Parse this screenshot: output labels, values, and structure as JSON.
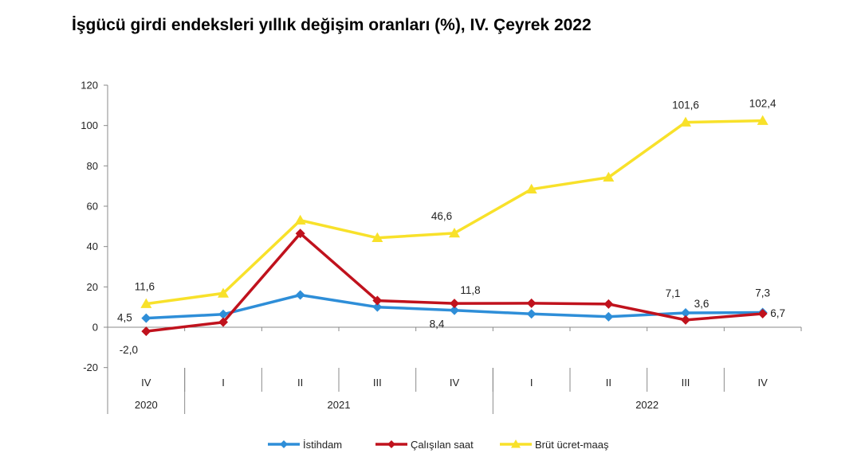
{
  "title": "İşgücü girdi endeksleri yıllık değişim oranları (%), IV. Çeyrek 2022",
  "chart_data": {
    "type": "line",
    "title": "İşgücü girdi endeksleri yıllık değişim oranları (%), IV. Çeyrek 2022",
    "categories": [
      "IV",
      "I",
      "II",
      "III",
      "IV",
      "I",
      "II",
      "III",
      "IV"
    ],
    "year_groups": [
      {
        "label": "2020",
        "count": 1
      },
      {
        "label": "2021",
        "count": 4
      },
      {
        "label": "2022",
        "count": 4
      }
    ],
    "ylim": [
      -20,
      120
    ],
    "yticks": [
      -20,
      0,
      20,
      40,
      60,
      80,
      100,
      120
    ],
    "grid": false,
    "legend_position": "bottom",
    "series": [
      {
        "name": "İstihdam",
        "color": "#2e8ed8",
        "marker": "diamond",
        "values": [
          4.5,
          6.4,
          16.0,
          10.0,
          8.4,
          6.6,
          5.2,
          7.1,
          7.3
        ]
      },
      {
        "name": "Çalışılan saat",
        "color": "#c0121d",
        "marker": "diamond",
        "values": [
          -2.0,
          2.5,
          46.5,
          13.2,
          11.8,
          11.9,
          11.5,
          3.6,
          6.7
        ]
      },
      {
        "name": "Brüt ücret-maaş",
        "color": "#f8e12a",
        "marker": "triangle",
        "values": [
          11.6,
          16.8,
          53.0,
          44.3,
          46.6,
          68.4,
          74.3,
          101.6,
          102.4
        ]
      }
    ],
    "data_labels": [
      {
        "series": 0,
        "index": 0,
        "text": "4,5"
      },
      {
        "series": 1,
        "index": 0,
        "text": "-2,0"
      },
      {
        "series": 2,
        "index": 0,
        "text": "11,6"
      },
      {
        "series": 2,
        "index": 4,
        "text": "46,6"
      },
      {
        "series": 1,
        "index": 4,
        "text": "11,8"
      },
      {
        "series": 0,
        "index": 4,
        "text": "8,4"
      },
      {
        "series": 2,
        "index": 7,
        "text": "101,6"
      },
      {
        "series": 0,
        "index": 7,
        "text": "7,1"
      },
      {
        "series": 1,
        "index": 7,
        "text": "3,6"
      },
      {
        "series": 2,
        "index": 8,
        "text": "102,4"
      },
      {
        "series": 0,
        "index": 8,
        "text": "7,3"
      },
      {
        "series": 1,
        "index": 8,
        "text": "6,7"
      }
    ]
  }
}
